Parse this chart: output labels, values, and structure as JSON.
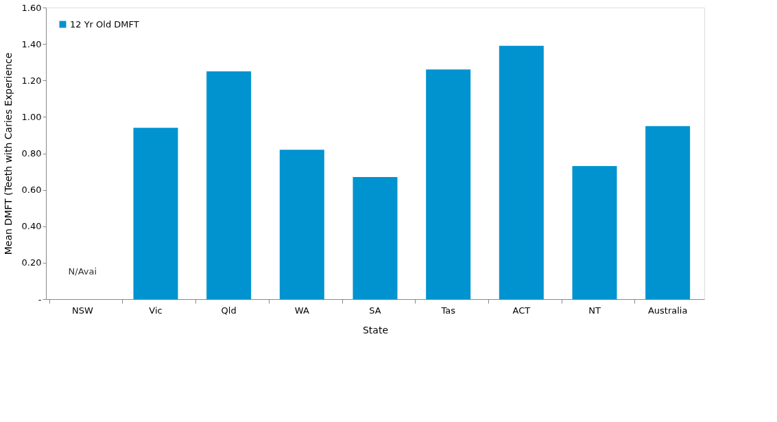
{
  "chart_data": {
    "type": "bar",
    "xlabel": "State",
    "ylabel": "Mean DMFT (Teeth with Caries Experience",
    "categories": [
      "NSW",
      "Vic",
      "Qld",
      "WA",
      "SA",
      "Tas",
      "ACT",
      "NT",
      "Australia"
    ],
    "series": [
      {
        "name": "12 Yr Old DMFT",
        "color": "#0093d0",
        "values": [
          null,
          0.94,
          1.25,
          0.82,
          0.67,
          1.26,
          1.39,
          0.73,
          0.95
        ]
      }
    ],
    "ylim": [
      0,
      1.6
    ],
    "yticks": [
      {
        "value": 0,
        "label": "-"
      },
      {
        "value": 0.2,
        "label": "0.20"
      },
      {
        "value": 0.4,
        "label": "0.40"
      },
      {
        "value": 0.6,
        "label": "0.60"
      },
      {
        "value": 0.8,
        "label": "0.80"
      },
      {
        "value": 1.0,
        "label": "1.00"
      },
      {
        "value": 1.2,
        "label": "1.20"
      },
      {
        "value": 1.4,
        "label": "1.40"
      },
      {
        "value": 1.6,
        "label": "1.60"
      }
    ],
    "annotations": [
      "N/Avai"
    ],
    "legend": "top left",
    "grid": false
  }
}
